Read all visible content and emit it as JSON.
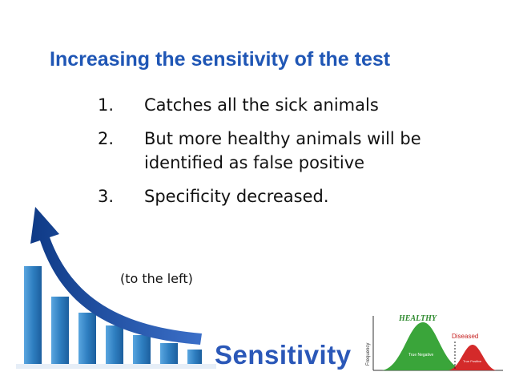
{
  "slide": {
    "title": "Increasing the sensitivity of the test",
    "items": [
      {
        "num": "1.",
        "text": "Catches all the sick animals"
      },
      {
        "num": "2.",
        "text": "But more healthy animals will be identified as false positive"
      },
      {
        "num": "3.",
        "text": "Specificity decreased."
      }
    ],
    "note": "(to the left)"
  },
  "graphic": {
    "word": "Sensitivity",
    "bar_color": "#2f7fc1",
    "arrow_color": "#1d4fa8"
  },
  "distribution": {
    "healthy_label": "HEALTHY",
    "diseased_label": "Diseased",
    "axis_label": "Frequency",
    "true_negative_label": "True Negative",
    "true_positive_label": "True Positive",
    "healthy_color": "#3aa53a",
    "diseased_color": "#d42a2a"
  }
}
